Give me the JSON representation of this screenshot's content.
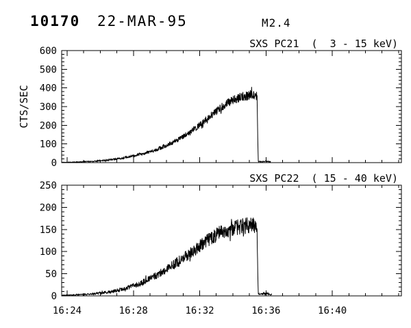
{
  "header": {
    "flare_number": "10170",
    "date": "22-MAR-95",
    "goes_class": "M2.4"
  },
  "x_axis": {
    "unit": "time UT",
    "range_minutes_after_1600": [
      23.67,
      44.17
    ],
    "major_tick_minutes": [
      24,
      28,
      32,
      36,
      40
    ],
    "tick_labels": [
      "16:24",
      "16:28",
      "16:32",
      "16:36",
      "16:40"
    ],
    "minor_tick_step_min": 1
  },
  "colors": {
    "foreground": "#000000",
    "background": "#ffffff"
  },
  "chart_data": [
    {
      "type": "line",
      "title": "SXS PC21  (  3 - 15 keV)",
      "ylabel": "CTS/SEC",
      "ylim": [
        0,
        600
      ],
      "yticks": [
        0,
        100,
        200,
        300,
        400,
        500,
        600
      ],
      "y_minor_step": 20,
      "grid": false,
      "legend": "none",
      "series": [
        {
          "name": "SXS PC21 (3-15 keV) count rate",
          "x_unit": "minutes after 16:00 UT",
          "note": "noisy trace; mean level and noise half-amplitude sampled at anchor times; abrupt cutoff ~16:35.5 then small blip to ~16:36.3, no data afterwards",
          "anchors_t_mean_noise": [
            [
              23.67,
              1.5,
              1
            ],
            [
              24.3,
              2.5,
              1.5
            ],
            [
              25,
              5,
              2.5
            ],
            [
              25.7,
              8,
              3
            ],
            [
              26.4,
              13,
              4
            ],
            [
              27.1,
              21,
              5
            ],
            [
              27.8,
              31,
              6
            ],
            [
              28.5,
              45,
              7
            ],
            [
              29.2,
              64,
              9
            ],
            [
              29.9,
              88,
              11
            ],
            [
              30.6,
              118,
              13
            ],
            [
              31.3,
              155,
              15
            ],
            [
              32,
              200,
              18
            ],
            [
              32.6,
              245,
              20
            ],
            [
              33.2,
              290,
              22
            ],
            [
              33.8,
              325,
              24
            ],
            [
              34.4,
              348,
              25
            ],
            [
              35,
              362,
              26
            ],
            [
              35.3,
              367,
              26
            ],
            [
              35.46,
              358,
              22
            ],
            [
              35.53,
              6,
              3
            ],
            [
              35.7,
              5,
              2.5
            ],
            [
              35.9,
              7,
              3
            ],
            [
              36.1,
              6,
              3
            ],
            [
              36.3,
              4,
              2
            ]
          ]
        }
      ]
    },
    {
      "type": "line",
      "title": "SXS PC22  ( 15 - 40 keV)",
      "ylabel": "",
      "ylim": [
        0,
        250
      ],
      "yticks": [
        0,
        50,
        100,
        150,
        200,
        250
      ],
      "y_minor_step": 10,
      "grid": false,
      "legend": "none",
      "series": [
        {
          "name": "SXS PC22 (15-40 keV) count rate",
          "x_unit": "minutes after 16:00 UT",
          "note": "noisy trace; abrupt cutoff ~16:35.5 then small blip to ~16:36.35, no data afterwards",
          "anchors_t_mean_noise": [
            [
              23.67,
              1,
              0.8
            ],
            [
              24.3,
              2,
              1
            ],
            [
              25,
              3,
              1.5
            ],
            [
              25.7,
              5,
              2
            ],
            [
              26.4,
              8,
              3
            ],
            [
              27.1,
              13,
              4
            ],
            [
              27.8,
              20,
              5
            ],
            [
              28.5,
              30,
              6.5
            ],
            [
              29.2,
              42,
              8
            ],
            [
              29.9,
              58,
              10
            ],
            [
              30.6,
              75,
              12
            ],
            [
              31.3,
              93,
              13
            ],
            [
              32,
              112,
              15
            ],
            [
              32.6,
              128,
              16
            ],
            [
              33.2,
              142,
              17
            ],
            [
              33.8,
              151,
              18
            ],
            [
              34.4,
              156,
              18
            ],
            [
              35,
              159,
              19
            ],
            [
              35.3,
              160,
              19
            ],
            [
              35.46,
              152,
              16
            ],
            [
              35.53,
              4,
              2
            ],
            [
              35.7,
              4,
              2
            ],
            [
              35.9,
              5,
              2.5
            ],
            [
              36.1,
              5,
              2.5
            ],
            [
              36.35,
              3,
              1.5
            ]
          ]
        }
      ]
    }
  ]
}
